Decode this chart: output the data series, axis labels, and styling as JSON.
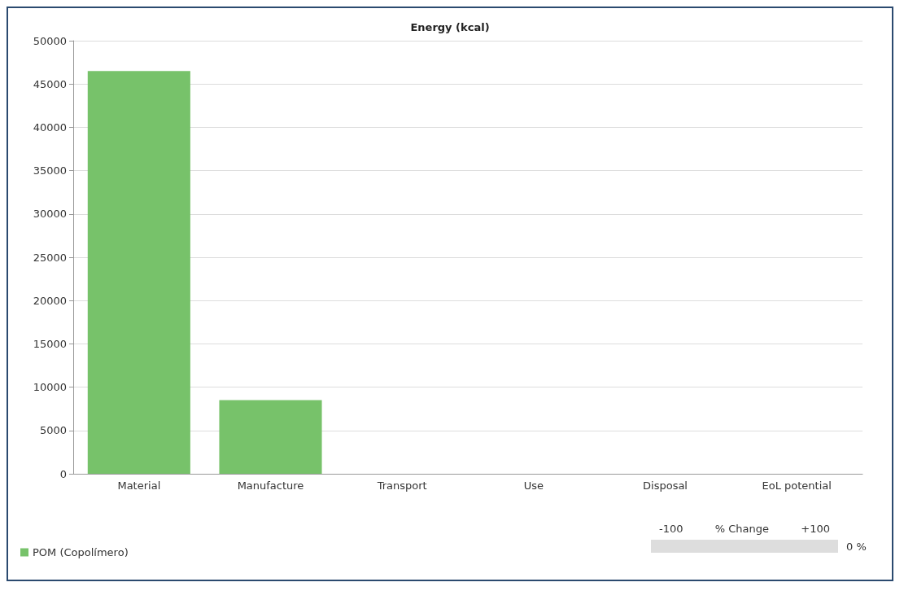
{
  "chart_data": {
    "type": "bar",
    "title": "Energy (kcal)",
    "categories": [
      "Material",
      "Manufacture",
      "Transport",
      "Use",
      "Disposal",
      "EoL potential"
    ],
    "series": [
      {
        "name": "POM (Copolímero)",
        "color": "#77c26a",
        "values": [
          46500,
          8500,
          0,
          0,
          0,
          0
        ]
      }
    ],
    "ylim": [
      0,
      50000
    ],
    "yticks": [
      0,
      5000,
      10000,
      15000,
      20000,
      25000,
      30000,
      35000,
      40000,
      45000,
      50000
    ],
    "grid": "y",
    "legend": "bottom left",
    "annotations": [
      "-100",
      "% Change",
      "+100",
      "0 %"
    ]
  }
}
